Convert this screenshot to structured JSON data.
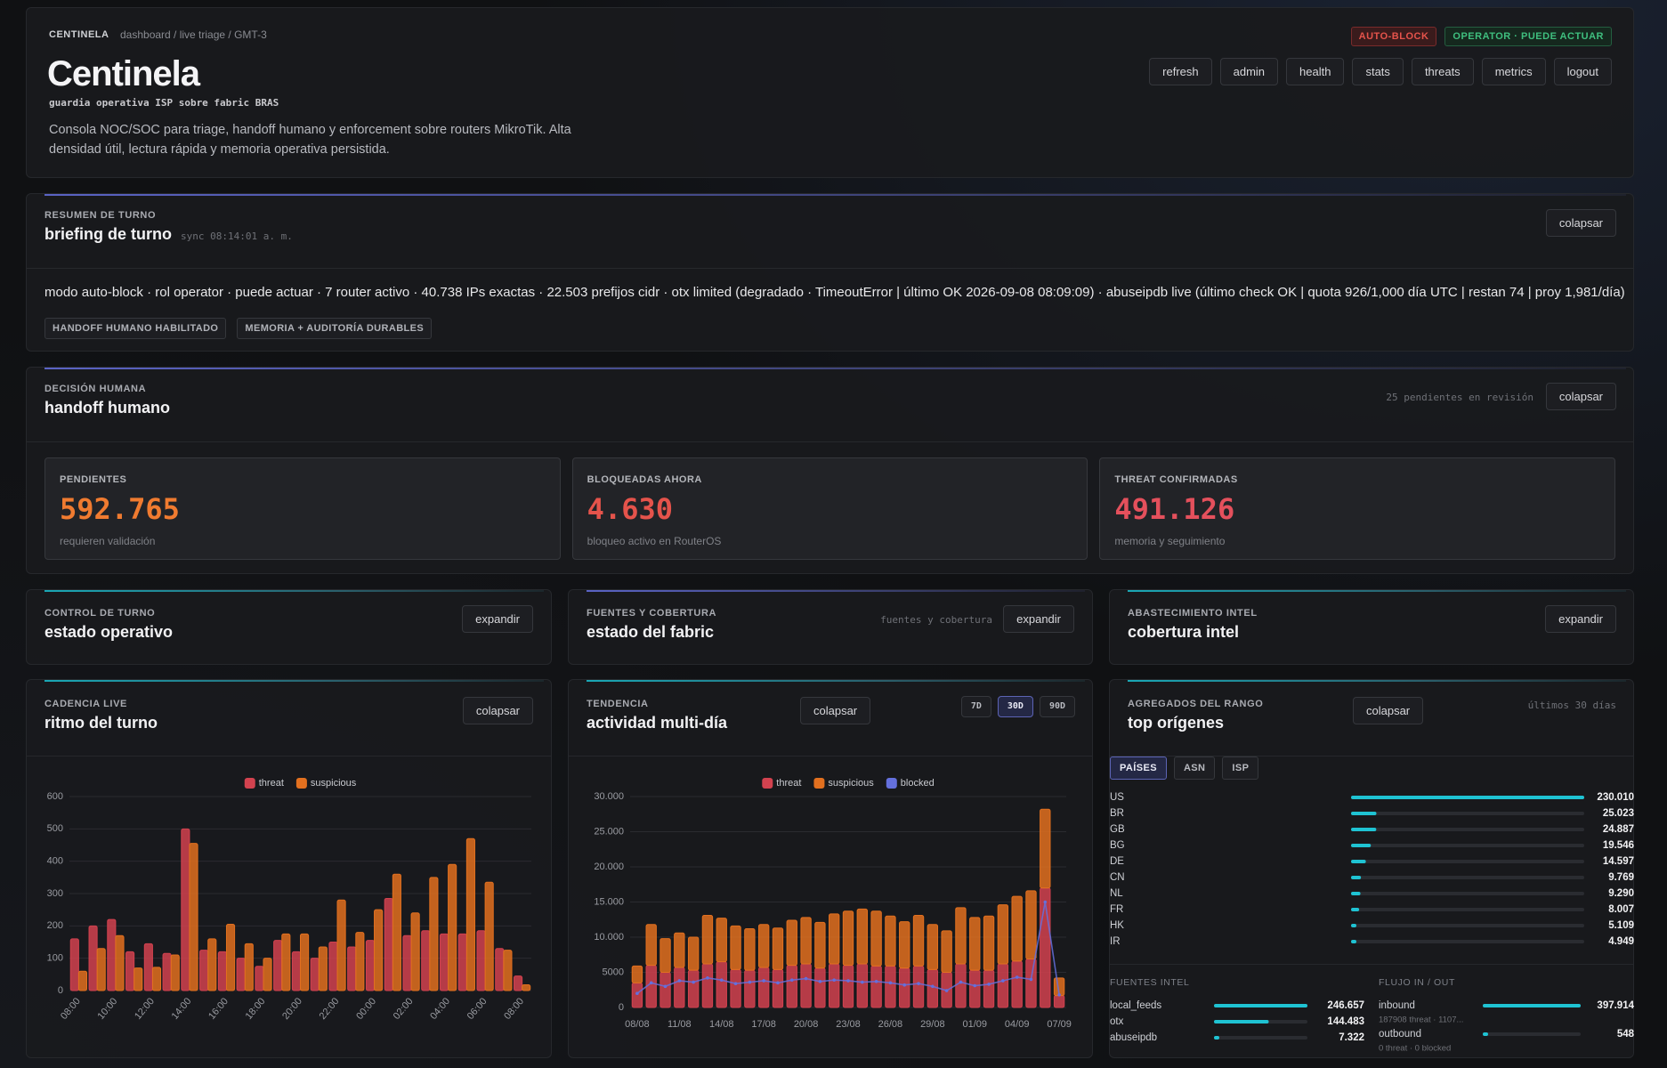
{
  "header": {
    "brand": "CENTINELA",
    "breadcrumb": "dashboard / live triage / GMT-3",
    "title": "Centinela",
    "subtitle": "guardia operativa ISP sobre fabric BRAS",
    "description": "Consola NOC/SOC para triage, handoff humano y enforcement sobre routers MikroTik. Alta densidad útil, lectura rápida y memoria operativa persistida.",
    "badges": [
      "AUTO-BLOCK",
      "OPERATOR · PUEDE ACTUAR"
    ],
    "nav": [
      "refresh",
      "admin",
      "health",
      "stats",
      "threats",
      "metrics",
      "logout"
    ]
  },
  "briefing": {
    "eyebrow": "RESUMEN DE TURNO",
    "title": "briefing de turno",
    "sync": "sync 08:14:01 a. m.",
    "button": "colapsar",
    "summary": "modo auto-block · rol operator · puede actuar · 7 router activo · 40.738 IPs exactas · 22.503 prefijos cidr · otx limited (degradado · TimeoutError | último OK 2026-09-08 08:09:09) · abuseipdb live (último check OK | quota 926/1,000 día UTC | restan 74 | proy 1,981/día)",
    "tags": [
      "HANDOFF HUMANO HABILITADO",
      "MEMORIA + AUDITORÍA DURABLES"
    ]
  },
  "handoff": {
    "eyebrow": "DECISIÓN HUMANA",
    "title": "handoff humano",
    "pending": "25 pendientes en revisión",
    "button": "colapsar",
    "cards": [
      {
        "label": "PENDIENTES",
        "value": "592.765",
        "note": "requieren validación"
      },
      {
        "label": "BLOQUEADAS AHORA",
        "value": "4.630",
        "note": "bloqueo activo en RouterOS"
      },
      {
        "label": "THREAT CONFIRMADAS",
        "value": "491.126",
        "note": "memoria y seguimiento"
      }
    ]
  },
  "panels": [
    {
      "eyebrow": "CONTROL DE TURNO",
      "title": "estado operativo",
      "button": "expandir"
    },
    {
      "eyebrow": "FUENTES Y COBERTURA",
      "title": "estado del fabric",
      "hint": "fuentes y cobertura",
      "button": "expandir"
    },
    {
      "eyebrow": "ABASTECIMIENTO INTEL",
      "title": "cobertura intel",
      "button": "expandir"
    }
  ],
  "chart_panels": [
    {
      "eyebrow": "CADENCIA LIVE",
      "title": "ritmo del turno",
      "button": "colapsar"
    },
    {
      "eyebrow": "TENDENCIA",
      "title": "actividad multi-día",
      "button": "colapsar",
      "ranges": [
        "7D",
        "30D",
        "90D"
      ],
      "active_range": 1
    },
    {
      "eyebrow": "AGREGADOS DEL RANGO",
      "title": "top orígenes",
      "button": "colapsar",
      "hint": "últimos 30 días",
      "tabs": [
        "PAÍSES",
        "ASN",
        "ISP"
      ],
      "active_tab": 0
    }
  ],
  "chart_data": [
    {
      "type": "bar",
      "legend": "top",
      "grid": true,
      "categories": [
        "08:00",
        null,
        "10:00",
        null,
        "12:00",
        null,
        "14:00",
        null,
        "16:00",
        null,
        "18:00",
        null,
        "20:00",
        null,
        "22:00",
        null,
        "00:00",
        null,
        "02:00",
        null,
        "04:00",
        null,
        "06:00",
        null,
        "08:00"
      ],
      "series": [
        {
          "name": "threat",
          "color": "#d2424f",
          "values": [
            160,
            200,
            220,
            120,
            145,
            115,
            500,
            125,
            120,
            100,
            75,
            155,
            120,
            100,
            150,
            135,
            155,
            285,
            170,
            185,
            175,
            175,
            185,
            130,
            45
          ]
        },
        {
          "name": "suspicious",
          "color": "#e2701f",
          "values": [
            60,
            130,
            170,
            70,
            72,
            110,
            455,
            160,
            205,
            145,
            100,
            175,
            175,
            135,
            280,
            180,
            250,
            360,
            240,
            350,
            390,
            470,
            335,
            125,
            18
          ]
        }
      ],
      "ylim": [
        0,
        600
      ],
      "yticks": [
        0,
        100,
        200,
        300,
        400,
        500,
        600
      ]
    },
    {
      "type": "bar",
      "stacked": true,
      "legend": "top",
      "grid": true,
      "categories": [
        "08/08",
        null,
        null,
        "11/08",
        null,
        null,
        "14/08",
        null,
        null,
        "17/08",
        null,
        null,
        "20/08",
        null,
        null,
        "23/08",
        null,
        null,
        "26/08",
        null,
        null,
        "29/08",
        null,
        null,
        "01/09",
        null,
        null,
        "04/09",
        null,
        null,
        "07/09"
      ],
      "series": [
        {
          "name": "threat",
          "color": "#d2424f",
          "values": [
            3500,
            6000,
            5000,
            5700,
            5300,
            6200,
            6500,
            5400,
            5300,
            5700,
            5400,
            6000,
            6200,
            5600,
            6200,
            6000,
            6200,
            5900,
            5900,
            5600,
            5900,
            5400,
            5000,
            6200,
            5300,
            5300,
            6200,
            6600,
            6900,
            17000,
            1700
          ]
        },
        {
          "name": "suspicious",
          "color": "#e2701f",
          "values": [
            2400,
            5800,
            4800,
            4900,
            4700,
            6900,
            6200,
            6200,
            5900,
            6100,
            5900,
            6400,
            6600,
            6500,
            7100,
            7700,
            7800,
            7800,
            7100,
            6600,
            7200,
            6400,
            5900,
            8000,
            7500,
            7700,
            8400,
            9200,
            9700,
            11200,
            2500
          ]
        },
        {
          "name": "blocked",
          "color": "#6470dd",
          "type": "line",
          "values": [
            2000,
            3500,
            3000,
            3800,
            3600,
            4200,
            3900,
            3400,
            3600,
            3800,
            3500,
            3900,
            4100,
            3700,
            3900,
            3800,
            3600,
            3700,
            3500,
            3200,
            3400,
            3000,
            2400,
            3600,
            3100,
            3300,
            3800,
            4300,
            4000,
            15000,
            1800
          ]
        }
      ],
      "ylim": [
        0,
        30000
      ],
      "yticks": [
        0,
        5000,
        {
          "value": 10000,
          "label": "10.000"
        },
        {
          "value": 15000,
          "label": "15.000"
        },
        {
          "value": 20000,
          "label": "20.000"
        },
        {
          "value": 25000,
          "label": "25.000"
        },
        {
          "value": 30000,
          "label": "30.000"
        }
      ]
    },
    {
      "type": "bar",
      "horizontal": true,
      "color": "#1fc3d3",
      "categories": [
        "US",
        "BR",
        "GB",
        "BG",
        "DE",
        "CN",
        "NL",
        "FR",
        "HK",
        "IR"
      ],
      "values": [
        230010,
        25023,
        24887,
        19546,
        14597,
        9769,
        9290,
        8007,
        5109,
        4949
      ],
      "value_labels": [
        "230.010",
        "25.023",
        "24.887",
        "19.546",
        "14.597",
        "9.769",
        "9.290",
        "8.007",
        "5.109",
        "4.949"
      ]
    },
    {
      "type": "bar",
      "horizontal": true,
      "color": "#1fc3d3",
      "title": "FUENTES INTEL",
      "categories": [
        "local_feeds",
        "otx",
        "abuseipdb"
      ],
      "values": [
        246657,
        144483,
        7322
      ],
      "value_labels": [
        "246.657",
        "144.483",
        "7.322"
      ]
    },
    {
      "type": "bar",
      "horizontal": true,
      "color": "#1fc3d3",
      "title": "FLUJO IN / OUT",
      "categories": [
        "inbound",
        "outbound"
      ],
      "values": [
        397914,
        548
      ],
      "value_labels": [
        "397.914",
        "548"
      ],
      "notes": [
        "187908 threat · 1107...",
        "0 threat · 0 blocked"
      ]
    }
  ]
}
